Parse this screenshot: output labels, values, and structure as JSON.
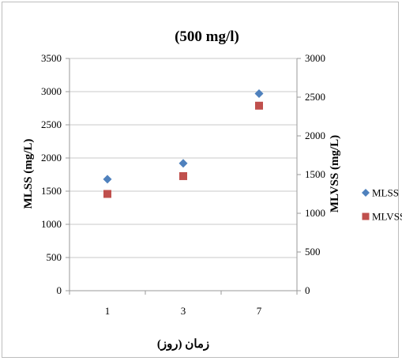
{
  "chart_data": {
    "type": "scatter",
    "title": "(500 mg/l)",
    "xlabel": "زمان (روز)",
    "ylabel_left": "MLSS (mg/L)",
    "ylabel_right": "MLVSS (mg/L)",
    "categories": [
      "1",
      "3",
      "7"
    ],
    "y_left_lim": [
      0,
      3500
    ],
    "y_left_ticks": [
      0,
      500,
      1000,
      1500,
      2000,
      2500,
      3000,
      3500
    ],
    "y_right_lim": [
      0,
      3000
    ],
    "y_right_ticks": [
      0,
      500,
      1000,
      1500,
      2000,
      2500,
      3000
    ],
    "grid": true,
    "legend_position": "right",
    "series": [
      {
        "name": "MLSS",
        "axis": "left",
        "marker": "diamond",
        "color": "#4f81bd",
        "values": [
          1680,
          1920,
          2970
        ]
      },
      {
        "name": "MLVSS",
        "axis": "right",
        "marker": "square",
        "color": "#c0504d",
        "values": [
          1250,
          1480,
          2390
        ]
      }
    ]
  }
}
